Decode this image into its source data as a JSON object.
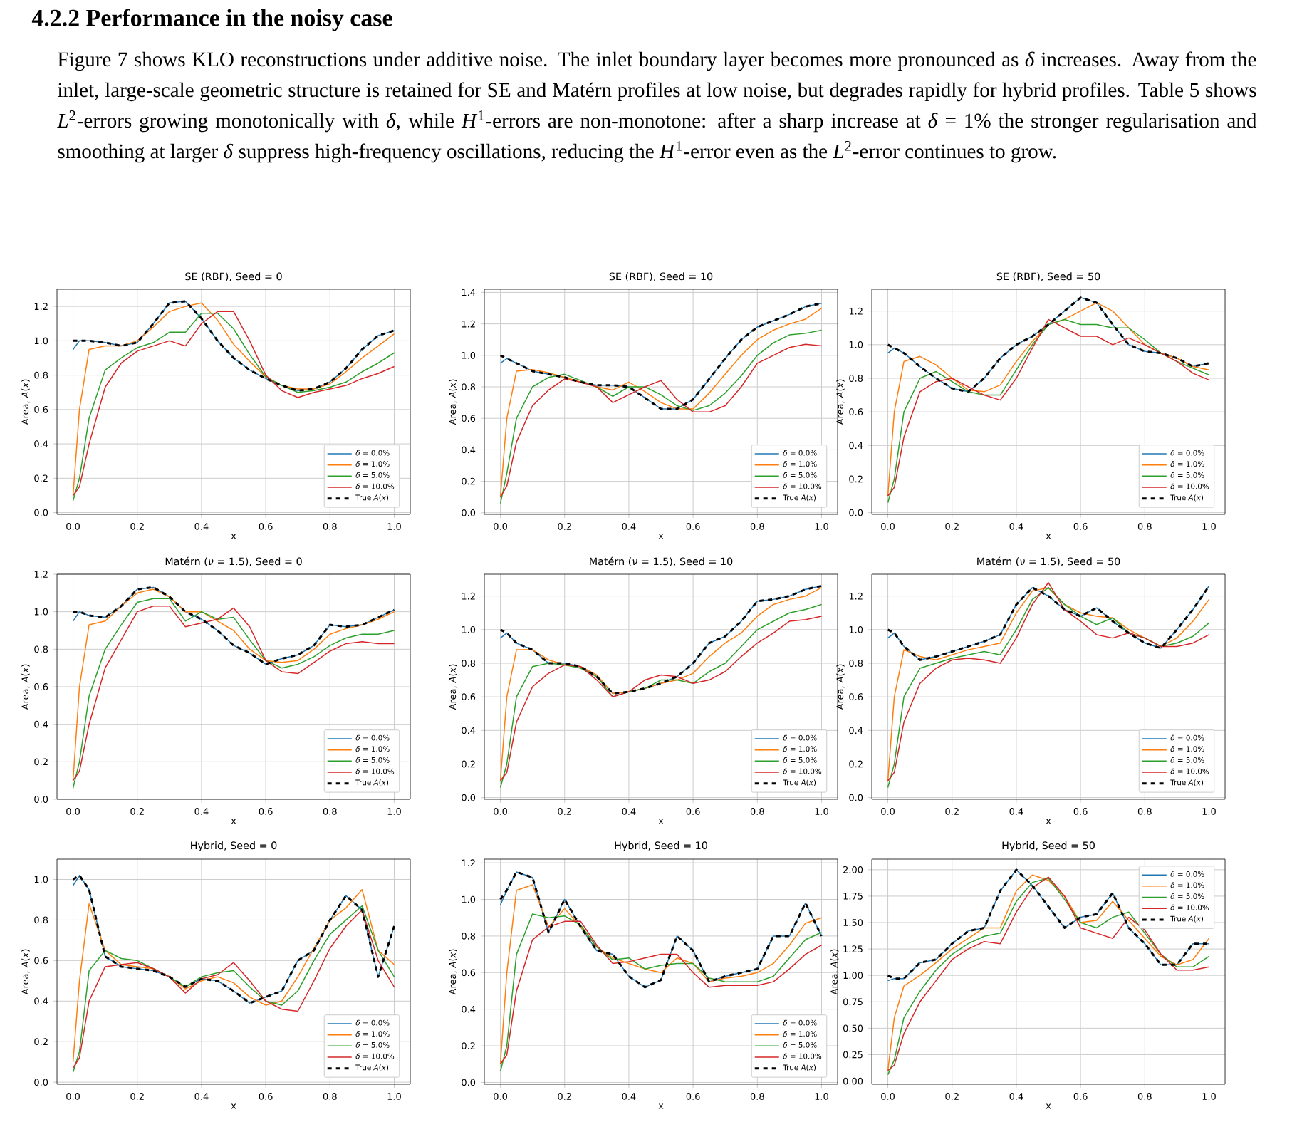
{
  "chart_data": [
    {
      "type": "line",
      "title": "SE (RBF), Seed = 0",
      "xlabel": "x",
      "ylabel": "Area, *A*(*x*)",
      "grid": true,
      "legend": "bottom right",
      "annotations": [
        "4.2.2 Performance in the noisy case",
        "Figure 7 shows KLO reconstructions under additive noise. The inlet boundary layer becomes more pronounced as *δ* increases. Away from the inlet, large-scale geometric structure is retained for SE and Matérn profiles at low noise, but degrades rapidly for hybrid profiles. Table 5 shows *L*$^{2}$-errors growing monotonically with *δ*, while *H*$^{1}$-errors are non-monotone: after a sharp increase at *δ* = 1% the stronger regularisation and smoothing at larger *δ* suppress high-frequency oscillations, reducing the *H*$^{1}$-error even as the *L*$^{2}$-error continues to grow."
      ],
      "xlim": [
        -0.05,
        1.05
      ],
      "xticks": [
        {
          "value": 0,
          "label": "0.0"
        },
        {
          "value": 0.2,
          "label": "0.2"
        },
        {
          "value": 0.4,
          "label": "0.4"
        },
        {
          "value": 0.6,
          "label": "0.6"
        },
        {
          "value": 0.8,
          "label": "0.8"
        },
        {
          "value": 1,
          "label": "1.0"
        }
      ],
      "ylim": [
        -0.01,
        1.3
      ],
      "yticks": [
        {
          "value": 0,
          "label": "0.0"
        },
        {
          "value": 0.2,
          "label": "0.2"
        },
        {
          "value": 0.4,
          "label": "0.4"
        },
        {
          "value": 0.6,
          "label": "0.6"
        },
        {
          "value": 0.8,
          "label": "0.8"
        },
        {
          "value": 1,
          "label": "1.0"
        },
        {
          "value": 1.2,
          "label": "1.2"
        }
      ],
      "x": [
        0,
        0.02,
        0.05,
        0.1,
        0.15,
        0.2,
        0.25,
        0.3,
        0.35,
        0.4,
        0.45,
        0.5,
        0.55,
        0.6,
        0.65,
        0.7,
        0.75,
        0.8,
        0.85,
        0.9,
        0.95,
        1.0
      ],
      "series": [
        {
          "name": "*δ* = 0.0%",
          "color": "#1f77b4",
          "line_style": "solid",
          "values": [
            0.95,
            1.0,
            1.0,
            0.99,
            0.97,
            0.99,
            1.1,
            1.22,
            1.23,
            1.13,
            1.0,
            0.9,
            0.83,
            0.78,
            0.74,
            0.71,
            0.72,
            0.76,
            0.84,
            0.95,
            1.03,
            1.06
          ]
        },
        {
          "name": "*δ* = 1.0%",
          "color": "#ff7f0e",
          "line_style": "solid",
          "values": [
            0.1,
            0.6,
            0.95,
            0.97,
            0.97,
            1.0,
            1.08,
            1.17,
            1.2,
            1.22,
            1.12,
            0.98,
            0.88,
            0.79,
            0.74,
            0.72,
            0.72,
            0.75,
            0.82,
            0.9,
            0.97,
            1.04
          ]
        },
        {
          "name": "*δ* = 5.0%",
          "color": "#2ca02c",
          "line_style": "solid",
          "values": [
            0.07,
            0.2,
            0.55,
            0.83,
            0.9,
            0.96,
            0.99,
            1.05,
            1.05,
            1.16,
            1.16,
            1.07,
            0.92,
            0.79,
            0.74,
            0.7,
            0.71,
            0.73,
            0.76,
            0.82,
            0.87,
            0.93
          ]
        },
        {
          "name": "*δ* = 10.0%",
          "color": "#d62728",
          "line_style": "solid",
          "values": [
            0.1,
            0.15,
            0.4,
            0.73,
            0.87,
            0.94,
            0.97,
            1.0,
            0.97,
            1.1,
            1.17,
            1.17,
            1.0,
            0.8,
            0.71,
            0.67,
            0.7,
            0.72,
            0.74,
            0.78,
            0.81,
            0.85
          ]
        },
        {
          "name": "True *A*(*x*)",
          "color": "#000000",
          "line_style": "dashed",
          "values": [
            1.0,
            1.0,
            1.0,
            0.99,
            0.97,
            0.99,
            1.1,
            1.22,
            1.23,
            1.13,
            1.0,
            0.9,
            0.83,
            0.78,
            0.74,
            0.71,
            0.72,
            0.76,
            0.84,
            0.95,
            1.03,
            1.06
          ]
        }
      ]
    },
    {
      "type": "line",
      "title": "SE (RBF), Seed = 10",
      "xlabel": "x",
      "ylabel": "Area, *A*(*x*)",
      "grid": true,
      "legend": "bottom right",
      "xlim": [
        -0.05,
        1.05
      ],
      "xticks": [
        {
          "value": 0,
          "label": "0.0"
        },
        {
          "value": 0.2,
          "label": "0.2"
        },
        {
          "value": 0.4,
          "label": "0.4"
        },
        {
          "value": 0.6,
          "label": "0.6"
        },
        {
          "value": 0.8,
          "label": "0.8"
        },
        {
          "value": 1,
          "label": "1.0"
        }
      ],
      "ylim": [
        -0.01,
        1.42
      ],
      "yticks": [
        {
          "value": 0,
          "label": "0.0"
        },
        {
          "value": 0.2,
          "label": "0.2"
        },
        {
          "value": 0.4,
          "label": "0.4"
        },
        {
          "value": 0.6,
          "label": "0.6"
        },
        {
          "value": 0.8,
          "label": "0.8"
        },
        {
          "value": 1,
          "label": "1.0"
        },
        {
          "value": 1.2,
          "label": "1.2"
        },
        {
          "value": 1.4,
          "label": "1.4"
        }
      ],
      "x": [
        0,
        0.02,
        0.05,
        0.1,
        0.15,
        0.2,
        0.25,
        0.3,
        0.35,
        0.4,
        0.45,
        0.5,
        0.55,
        0.6,
        0.65,
        0.7,
        0.75,
        0.8,
        0.85,
        0.9,
        0.95,
        1.0
      ],
      "series": [
        {
          "name": "*δ* = 0.0%",
          "color": "#1f77b4",
          "line_style": "solid",
          "values": [
            0.95,
            0.98,
            0.95,
            0.9,
            0.88,
            0.86,
            0.83,
            0.81,
            0.81,
            0.8,
            0.73,
            0.66,
            0.66,
            0.72,
            0.85,
            0.98,
            1.1,
            1.18,
            1.22,
            1.26,
            1.31,
            1.33
          ]
        },
        {
          "name": "*δ* = 1.0%",
          "color": "#ff7f0e",
          "line_style": "solid",
          "values": [
            0.1,
            0.6,
            0.9,
            0.91,
            0.89,
            0.86,
            0.83,
            0.8,
            0.78,
            0.83,
            0.77,
            0.7,
            0.66,
            0.66,
            0.76,
            0.88,
            1.0,
            1.1,
            1.16,
            1.2,
            1.23,
            1.3
          ]
        },
        {
          "name": "*δ* = 5.0%",
          "color": "#2ca02c",
          "line_style": "solid",
          "values": [
            0.06,
            0.25,
            0.6,
            0.8,
            0.86,
            0.88,
            0.84,
            0.8,
            0.74,
            0.8,
            0.8,
            0.75,
            0.68,
            0.65,
            0.68,
            0.76,
            0.87,
            1.0,
            1.08,
            1.13,
            1.14,
            1.16
          ]
        },
        {
          "name": "*δ* = 10.0%",
          "color": "#d62728",
          "line_style": "solid",
          "values": [
            0.1,
            0.17,
            0.45,
            0.68,
            0.78,
            0.85,
            0.83,
            0.8,
            0.7,
            0.75,
            0.8,
            0.84,
            0.72,
            0.64,
            0.64,
            0.68,
            0.8,
            0.95,
            1.0,
            1.05,
            1.07,
            1.06
          ]
        },
        {
          "name": "True *A*(*x*)",
          "color": "#000000",
          "line_style": "dashed",
          "values": [
            1.0,
            0.98,
            0.95,
            0.9,
            0.88,
            0.86,
            0.83,
            0.81,
            0.81,
            0.8,
            0.73,
            0.66,
            0.66,
            0.72,
            0.85,
            0.98,
            1.1,
            1.18,
            1.22,
            1.26,
            1.31,
            1.33
          ]
        }
      ]
    },
    {
      "type": "line",
      "title": "SE (RBF), Seed = 50",
      "xlabel": "x",
      "ylabel": "Area, *A*(*x*)",
      "grid": true,
      "legend": "bottom right",
      "xlim": [
        -0.05,
        1.05
      ],
      "xticks": [
        {
          "value": 0,
          "label": "0.0"
        },
        {
          "value": 0.2,
          "label": "0.2"
        },
        {
          "value": 0.4,
          "label": "0.4"
        },
        {
          "value": 0.6,
          "label": "0.6"
        },
        {
          "value": 0.8,
          "label": "0.8"
        },
        {
          "value": 1,
          "label": "1.0"
        }
      ],
      "ylim": [
        -0.01,
        1.33
      ],
      "yticks": [
        {
          "value": 0,
          "label": "0.0"
        },
        {
          "value": 0.2,
          "label": "0.2"
        },
        {
          "value": 0.4,
          "label": "0.4"
        },
        {
          "value": 0.6,
          "label": "0.6"
        },
        {
          "value": 0.8,
          "label": "0.8"
        },
        {
          "value": 1,
          "label": "1.0"
        },
        {
          "value": 1.2,
          "label": "1.2"
        }
      ],
      "x": [
        0,
        0.02,
        0.05,
        0.1,
        0.15,
        0.2,
        0.25,
        0.3,
        0.35,
        0.4,
        0.45,
        0.5,
        0.55,
        0.6,
        0.65,
        0.7,
        0.75,
        0.8,
        0.85,
        0.9,
        0.95,
        1.0
      ],
      "series": [
        {
          "name": "*δ* = 0.0%",
          "color": "#1f77b4",
          "line_style": "solid",
          "values": [
            0.95,
            0.98,
            0.95,
            0.87,
            0.8,
            0.74,
            0.72,
            0.8,
            0.92,
            1.0,
            1.05,
            1.12,
            1.2,
            1.28,
            1.25,
            1.12,
            1.0,
            0.96,
            0.95,
            0.92,
            0.87,
            0.89
          ]
        },
        {
          "name": "*δ* = 1.0%",
          "color": "#ff7f0e",
          "line_style": "solid",
          "values": [
            0.1,
            0.6,
            0.9,
            0.93,
            0.88,
            0.8,
            0.73,
            0.72,
            0.76,
            0.9,
            1.02,
            1.12,
            1.15,
            1.2,
            1.25,
            1.2,
            1.1,
            1.0,
            0.95,
            0.92,
            0.87,
            0.85
          ]
        },
        {
          "name": "*δ* = 5.0%",
          "color": "#2ca02c",
          "line_style": "solid",
          "values": [
            0.06,
            0.2,
            0.6,
            0.8,
            0.84,
            0.78,
            0.72,
            0.7,
            0.7,
            0.85,
            1.0,
            1.12,
            1.15,
            1.12,
            1.12,
            1.1,
            1.1,
            1.03,
            0.95,
            0.9,
            0.86,
            0.82
          ]
        },
        {
          "name": "*δ* = 10.0%",
          "color": "#d62728",
          "line_style": "solid",
          "values": [
            0.1,
            0.15,
            0.45,
            0.72,
            0.78,
            0.8,
            0.75,
            0.7,
            0.67,
            0.8,
            0.98,
            1.15,
            1.1,
            1.05,
            1.05,
            1.0,
            1.04,
            1.0,
            0.95,
            0.9,
            0.83,
            0.79
          ]
        },
        {
          "name": "True *A*(*x*)",
          "color": "#000000",
          "line_style": "dashed",
          "values": [
            1.0,
            0.98,
            0.95,
            0.87,
            0.8,
            0.74,
            0.72,
            0.8,
            0.92,
            1.0,
            1.05,
            1.12,
            1.2,
            1.28,
            1.25,
            1.12,
            1.0,
            0.96,
            0.95,
            0.92,
            0.87,
            0.89
          ]
        }
      ]
    },
    {
      "type": "line",
      "title": "Matérn (*ν* = 1.5), Seed = 0",
      "xlabel": "x",
      "ylabel": "Area, *A*(*x*)",
      "grid": true,
      "legend": "bottom right",
      "xlim": [
        -0.05,
        1.05
      ],
      "xticks": [
        {
          "value": 0,
          "label": "0.0"
        },
        {
          "value": 0.2,
          "label": "0.2"
        },
        {
          "value": 0.4,
          "label": "0.4"
        },
        {
          "value": 0.6,
          "label": "0.6"
        },
        {
          "value": 0.8,
          "label": "0.8"
        },
        {
          "value": 1,
          "label": "1.0"
        }
      ],
      "ylim": [
        0,
        1.2
      ],
      "yticks": [
        {
          "value": 0,
          "label": "0.0"
        },
        {
          "value": 0.2,
          "label": "0.2"
        },
        {
          "value": 0.4,
          "label": "0.4"
        },
        {
          "value": 0.6,
          "label": "0.6"
        },
        {
          "value": 0.8,
          "label": "0.8"
        },
        {
          "value": 1,
          "label": "1.0"
        },
        {
          "value": 1.2,
          "label": "1.2"
        }
      ],
      "x": [
        0,
        0.02,
        0.05,
        0.1,
        0.15,
        0.2,
        0.25,
        0.3,
        0.35,
        0.4,
        0.45,
        0.5,
        0.55,
        0.6,
        0.65,
        0.7,
        0.75,
        0.8,
        0.85,
        0.9,
        0.95,
        1.0
      ],
      "series": [
        {
          "name": "*δ* = 0.0%",
          "color": "#1f77b4",
          "line_style": "solid",
          "values": [
            0.95,
            1.0,
            0.98,
            0.97,
            1.03,
            1.12,
            1.13,
            1.08,
            1.0,
            0.96,
            0.9,
            0.82,
            0.78,
            0.72,
            0.75,
            0.77,
            0.82,
            0.93,
            0.92,
            0.93,
            0.97,
            1.01
          ]
        },
        {
          "name": "*δ* = 1.0%",
          "color": "#ff7f0e",
          "line_style": "solid",
          "values": [
            0.1,
            0.6,
            0.93,
            0.95,
            1.03,
            1.1,
            1.12,
            1.08,
            1.0,
            1.0,
            0.95,
            0.9,
            0.8,
            0.74,
            0.73,
            0.74,
            0.8,
            0.88,
            0.91,
            0.93,
            0.96,
            1.0
          ]
        },
        {
          "name": "*δ* = 5.0%",
          "color": "#2ca02c",
          "line_style": "solid",
          "values": [
            0.06,
            0.2,
            0.55,
            0.8,
            0.93,
            1.05,
            1.07,
            1.07,
            0.95,
            1.0,
            0.96,
            0.97,
            0.85,
            0.74,
            0.7,
            0.72,
            0.76,
            0.82,
            0.86,
            0.88,
            0.88,
            0.9
          ]
        },
        {
          "name": "*δ* = 10.0%",
          "color": "#d62728",
          "line_style": "solid",
          "values": [
            0.1,
            0.15,
            0.4,
            0.7,
            0.85,
            1.0,
            1.03,
            1.03,
            0.92,
            0.94,
            0.96,
            1.02,
            0.92,
            0.74,
            0.68,
            0.67,
            0.73,
            0.79,
            0.83,
            0.84,
            0.83,
            0.83
          ]
        },
        {
          "name": "True *A*(*x*)",
          "color": "#000000",
          "line_style": "dashed",
          "values": [
            1.0,
            1.0,
            0.98,
            0.97,
            1.03,
            1.12,
            1.13,
            1.08,
            1.0,
            0.96,
            0.9,
            0.82,
            0.78,
            0.72,
            0.75,
            0.77,
            0.82,
            0.93,
            0.92,
            0.93,
            0.97,
            1.01
          ]
        }
      ]
    },
    {
      "type": "line",
      "title": "Matérn (*ν* = 1.5), Seed = 10",
      "xlabel": "x",
      "ylabel": "Area, *A*(*x*)",
      "grid": true,
      "legend": "bottom right",
      "xlim": [
        -0.05,
        1.05
      ],
      "xticks": [
        {
          "value": 0,
          "label": "0.0"
        },
        {
          "value": 0.2,
          "label": "0.2"
        },
        {
          "value": 0.4,
          "label": "0.4"
        },
        {
          "value": 0.6,
          "label": "0.6"
        },
        {
          "value": 0.8,
          "label": "0.8"
        },
        {
          "value": 1,
          "label": "1.0"
        }
      ],
      "ylim": [
        -0.01,
        1.33
      ],
      "yticks": [
        {
          "value": 0,
          "label": "0.0"
        },
        {
          "value": 0.2,
          "label": "0.2"
        },
        {
          "value": 0.4,
          "label": "0.4"
        },
        {
          "value": 0.6,
          "label": "0.6"
        },
        {
          "value": 0.8,
          "label": "0.8"
        },
        {
          "value": 1,
          "label": "1.0"
        },
        {
          "value": 1.2,
          "label": "1.2"
        }
      ],
      "x": [
        0,
        0.02,
        0.05,
        0.1,
        0.15,
        0.2,
        0.25,
        0.3,
        0.35,
        0.4,
        0.45,
        0.5,
        0.55,
        0.6,
        0.65,
        0.7,
        0.75,
        0.8,
        0.85,
        0.9,
        0.95,
        1.0
      ],
      "series": [
        {
          "name": "*δ* = 0.0%",
          "color": "#1f77b4",
          "line_style": "solid",
          "values": [
            0.95,
            0.98,
            0.92,
            0.88,
            0.8,
            0.8,
            0.78,
            0.72,
            0.62,
            0.63,
            0.65,
            0.68,
            0.72,
            0.8,
            0.92,
            0.96,
            1.05,
            1.17,
            1.18,
            1.2,
            1.24,
            1.26
          ]
        },
        {
          "name": "*δ* = 1.0%",
          "color": "#ff7f0e",
          "line_style": "solid",
          "values": [
            0.1,
            0.6,
            0.88,
            0.88,
            0.82,
            0.79,
            0.78,
            0.73,
            0.62,
            0.63,
            0.65,
            0.68,
            0.7,
            0.74,
            0.84,
            0.92,
            0.98,
            1.08,
            1.15,
            1.18,
            1.2,
            1.25
          ]
        },
        {
          "name": "*δ* = 5.0%",
          "color": "#2ca02c",
          "line_style": "solid",
          "values": [
            0.06,
            0.2,
            0.6,
            0.78,
            0.8,
            0.79,
            0.77,
            0.72,
            0.6,
            0.63,
            0.65,
            0.7,
            0.7,
            0.68,
            0.75,
            0.8,
            0.9,
            1.0,
            1.05,
            1.1,
            1.12,
            1.15
          ]
        },
        {
          "name": "*δ* = 10.0%",
          "color": "#d62728",
          "line_style": "solid",
          "values": [
            0.1,
            0.15,
            0.45,
            0.66,
            0.74,
            0.79,
            0.78,
            0.7,
            0.6,
            0.63,
            0.7,
            0.73,
            0.72,
            0.68,
            0.7,
            0.75,
            0.84,
            0.92,
            0.98,
            1.05,
            1.06,
            1.08
          ]
        },
        {
          "name": "True *A*(*x*)",
          "color": "#000000",
          "line_style": "dashed",
          "values": [
            1.0,
            0.98,
            0.92,
            0.88,
            0.8,
            0.8,
            0.78,
            0.72,
            0.62,
            0.63,
            0.65,
            0.68,
            0.72,
            0.8,
            0.92,
            0.96,
            1.05,
            1.17,
            1.18,
            1.2,
            1.24,
            1.26
          ]
        }
      ]
    },
    {
      "type": "line",
      "title": "Matérn (*ν* = 1.5), Seed = 50",
      "xlabel": "x",
      "ylabel": "Area, *A*(*x*)",
      "grid": true,
      "legend": "bottom right",
      "xlim": [
        -0.05,
        1.05
      ],
      "xticks": [
        {
          "value": 0,
          "label": "0.0"
        },
        {
          "value": 0.2,
          "label": "0.2"
        },
        {
          "value": 0.4,
          "label": "0.4"
        },
        {
          "value": 0.6,
          "label": "0.6"
        },
        {
          "value": 0.8,
          "label": "0.8"
        },
        {
          "value": 1,
          "label": "1.0"
        }
      ],
      "ylim": [
        -0.01,
        1.33
      ],
      "yticks": [
        {
          "value": 0,
          "label": "0.0"
        },
        {
          "value": 0.2,
          "label": "0.2"
        },
        {
          "value": 0.4,
          "label": "0.4"
        },
        {
          "value": 0.6,
          "label": "0.6"
        },
        {
          "value": 0.8,
          "label": "0.8"
        },
        {
          "value": 1,
          "label": "1.0"
        },
        {
          "value": 1.2,
          "label": "1.2"
        }
      ],
      "x": [
        0,
        0.02,
        0.05,
        0.1,
        0.15,
        0.2,
        0.25,
        0.3,
        0.35,
        0.4,
        0.45,
        0.5,
        0.55,
        0.6,
        0.65,
        0.7,
        0.75,
        0.8,
        0.85,
        0.9,
        0.95,
        1.0
      ],
      "series": [
        {
          "name": "*δ* = 0.0%",
          "color": "#1f77b4",
          "line_style": "solid",
          "values": [
            0.95,
            0.98,
            0.9,
            0.82,
            0.84,
            0.87,
            0.9,
            0.93,
            0.97,
            1.15,
            1.25,
            1.2,
            1.12,
            1.08,
            1.13,
            1.05,
            0.98,
            0.92,
            0.89,
            1.0,
            1.12,
            1.26
          ]
        },
        {
          "name": "*δ* = 1.0%",
          "color": "#ff7f0e",
          "line_style": "solid",
          "values": [
            0.1,
            0.6,
            0.88,
            0.84,
            0.82,
            0.85,
            0.88,
            0.9,
            0.92,
            1.1,
            1.23,
            1.25,
            1.15,
            1.1,
            1.08,
            1.07,
            1.0,
            0.95,
            0.9,
            0.95,
            1.05,
            1.18
          ]
        },
        {
          "name": "*δ* = 5.0%",
          "color": "#2ca02c",
          "line_style": "solid",
          "values": [
            0.06,
            0.2,
            0.6,
            0.77,
            0.8,
            0.83,
            0.85,
            0.87,
            0.85,
            1.0,
            1.18,
            1.25,
            1.15,
            1.08,
            1.03,
            1.07,
            0.98,
            0.95,
            0.9,
            0.92,
            0.96,
            1.04
          ]
        },
        {
          "name": "*δ* = 10.0%",
          "color": "#d62728",
          "line_style": "solid",
          "values": [
            0.1,
            0.15,
            0.45,
            0.68,
            0.77,
            0.82,
            0.83,
            0.82,
            0.8,
            0.95,
            1.15,
            1.28,
            1.12,
            1.05,
            0.97,
            0.95,
            0.98,
            0.95,
            0.9,
            0.9,
            0.92,
            0.97
          ]
        },
        {
          "name": "True *A*(*x*)",
          "color": "#000000",
          "line_style": "dashed",
          "values": [
            1.0,
            0.98,
            0.9,
            0.82,
            0.84,
            0.87,
            0.9,
            0.93,
            0.97,
            1.15,
            1.25,
            1.2,
            1.12,
            1.08,
            1.13,
            1.05,
            0.98,
            0.92,
            0.89,
            1.0,
            1.12,
            1.26
          ]
        }
      ]
    },
    {
      "type": "line",
      "title": "Hybrid, Seed = 0",
      "xlabel": "x",
      "ylabel": "Area, *A*(*x*)",
      "grid": true,
      "legend": "bottom right",
      "xlim": [
        -0.05,
        1.05
      ],
      "xticks": [
        {
          "value": 0,
          "label": "0.0"
        },
        {
          "value": 0.2,
          "label": "0.2"
        },
        {
          "value": 0.4,
          "label": "0.4"
        },
        {
          "value": 0.6,
          "label": "0.6"
        },
        {
          "value": 0.8,
          "label": "0.8"
        },
        {
          "value": 1,
          "label": "1.0"
        }
      ],
      "ylim": [
        -0.01,
        1.1
      ],
      "yticks": [
        {
          "value": 0,
          "label": "0.0"
        },
        {
          "value": 0.2,
          "label": "0.2"
        },
        {
          "value": 0.4,
          "label": "0.4"
        },
        {
          "value": 0.6,
          "label": "0.6"
        },
        {
          "value": 0.8,
          "label": "0.8"
        },
        {
          "value": 1,
          "label": "1.0"
        }
      ],
      "x": [
        0,
        0.02,
        0.05,
        0.1,
        0.15,
        0.2,
        0.25,
        0.3,
        0.35,
        0.4,
        0.45,
        0.5,
        0.55,
        0.6,
        0.65,
        0.7,
        0.75,
        0.8,
        0.85,
        0.9,
        0.95,
        1.0
      ],
      "series": [
        {
          "name": "*δ* = 0.0%",
          "color": "#1f77b4",
          "line_style": "solid",
          "values": [
            0.97,
            1.02,
            0.95,
            0.62,
            0.57,
            0.56,
            0.55,
            0.52,
            0.47,
            0.51,
            0.5,
            0.45,
            0.39,
            0.42,
            0.45,
            0.6,
            0.65,
            0.8,
            0.92,
            0.85,
            0.52,
            0.77
          ]
        },
        {
          "name": "*δ* = 1.0%",
          "color": "#ff7f0e",
          "line_style": "solid",
          "values": [
            0.1,
            0.5,
            0.88,
            0.65,
            0.58,
            0.57,
            0.56,
            0.52,
            0.46,
            0.5,
            0.52,
            0.49,
            0.42,
            0.38,
            0.4,
            0.52,
            0.66,
            0.8,
            0.86,
            0.95,
            0.65,
            0.58
          ]
        },
        {
          "name": "*δ* = 5.0%",
          "color": "#2ca02c",
          "line_style": "solid",
          "values": [
            0.05,
            0.15,
            0.55,
            0.65,
            0.61,
            0.6,
            0.56,
            0.52,
            0.47,
            0.52,
            0.54,
            0.55,
            0.47,
            0.4,
            0.38,
            0.45,
            0.6,
            0.73,
            0.8,
            0.87,
            0.65,
            0.52
          ]
        },
        {
          "name": "*δ* = 10.0%",
          "color": "#d62728",
          "line_style": "solid",
          "values": [
            0.07,
            0.12,
            0.4,
            0.57,
            0.58,
            0.59,
            0.56,
            0.52,
            0.44,
            0.51,
            0.53,
            0.59,
            0.5,
            0.4,
            0.36,
            0.35,
            0.5,
            0.66,
            0.77,
            0.85,
            0.6,
            0.47
          ]
        },
        {
          "name": "True *A*(*x*)",
          "color": "#000000",
          "line_style": "dashed",
          "values": [
            1.0,
            1.02,
            0.95,
            0.62,
            0.57,
            0.56,
            0.55,
            0.52,
            0.47,
            0.51,
            0.5,
            0.45,
            0.39,
            0.42,
            0.45,
            0.6,
            0.65,
            0.8,
            0.92,
            0.85,
            0.52,
            0.77
          ]
        }
      ]
    },
    {
      "type": "line",
      "title": "Hybrid, Seed = 10",
      "xlabel": "x",
      "ylabel": "Area, *A*(*x*)",
      "grid": true,
      "legend": "bottom right",
      "xlim": [
        -0.05,
        1.05
      ],
      "xticks": [
        {
          "value": 0,
          "label": "0.0"
        },
        {
          "value": 0.2,
          "label": "0.2"
        },
        {
          "value": 0.4,
          "label": "0.4"
        },
        {
          "value": 0.6,
          "label": "0.6"
        },
        {
          "value": 0.8,
          "label": "0.8"
        },
        {
          "value": 1,
          "label": "1.0"
        }
      ],
      "ylim": [
        -0.01,
        1.22
      ],
      "yticks": [
        {
          "value": 0,
          "label": "0.0"
        },
        {
          "value": 0.2,
          "label": "0.2"
        },
        {
          "value": 0.4,
          "label": "0.4"
        },
        {
          "value": 0.6,
          "label": "0.6"
        },
        {
          "value": 0.8,
          "label": "0.8"
        },
        {
          "value": 1,
          "label": "1.0"
        },
        {
          "value": 1.2,
          "label": "1.2"
        }
      ],
      "x": [
        0,
        0.02,
        0.05,
        0.1,
        0.15,
        0.2,
        0.25,
        0.3,
        0.35,
        0.4,
        0.45,
        0.5,
        0.55,
        0.6,
        0.65,
        0.7,
        0.75,
        0.8,
        0.85,
        0.9,
        0.95,
        1.0
      ],
      "series": [
        {
          "name": "*δ* = 0.0%",
          "color": "#1f77b4",
          "line_style": "solid",
          "values": [
            0.97,
            1.05,
            1.15,
            1.12,
            0.82,
            1.0,
            0.85,
            0.72,
            0.7,
            0.58,
            0.52,
            0.56,
            0.8,
            0.72,
            0.55,
            0.58,
            0.6,
            0.62,
            0.8,
            0.8,
            0.98,
            0.8
          ]
        },
        {
          "name": "*δ* = 1.0%",
          "color": "#ff7f0e",
          "line_style": "solid",
          "values": [
            0.1,
            0.6,
            1.05,
            1.08,
            0.85,
            0.95,
            0.85,
            0.74,
            0.68,
            0.65,
            0.62,
            0.6,
            0.68,
            0.65,
            0.55,
            0.57,
            0.58,
            0.6,
            0.65,
            0.75,
            0.87,
            0.9
          ]
        },
        {
          "name": "*δ* = 5.0%",
          "color": "#2ca02c",
          "line_style": "solid",
          "values": [
            0.06,
            0.2,
            0.7,
            0.92,
            0.9,
            0.91,
            0.86,
            0.74,
            0.67,
            0.68,
            0.62,
            0.64,
            0.65,
            0.65,
            0.57,
            0.55,
            0.55,
            0.55,
            0.58,
            0.68,
            0.78,
            0.82
          ]
        },
        {
          "name": "*δ* = 10.0%",
          "color": "#d62728",
          "line_style": "solid",
          "values": [
            0.1,
            0.15,
            0.5,
            0.78,
            0.85,
            0.88,
            0.88,
            0.75,
            0.65,
            0.66,
            0.68,
            0.7,
            0.7,
            0.6,
            0.52,
            0.53,
            0.53,
            0.53,
            0.55,
            0.62,
            0.7,
            0.75
          ]
        },
        {
          "name": "True *A*(*x*)",
          "color": "#000000",
          "line_style": "dashed",
          "values": [
            1.0,
            1.05,
            1.15,
            1.12,
            0.82,
            1.0,
            0.85,
            0.72,
            0.7,
            0.58,
            0.52,
            0.56,
            0.8,
            0.72,
            0.55,
            0.58,
            0.6,
            0.62,
            0.8,
            0.8,
            0.98,
            0.8
          ]
        }
      ]
    },
    {
      "type": "line",
      "title": "Hybrid, Seed = 50",
      "xlabel": "x",
      "ylabel": "Area, *A*(*x*)",
      "grid": true,
      "legend": "top right",
      "xlim": [
        -0.05,
        1.05
      ],
      "xticks": [
        {
          "value": 0,
          "label": "0.0"
        },
        {
          "value": 0.2,
          "label": "0.2"
        },
        {
          "value": 0.4,
          "label": "0.4"
        },
        {
          "value": 0.6,
          "label": "0.6"
        },
        {
          "value": 0.8,
          "label": "0.8"
        },
        {
          "value": 1,
          "label": "1.0"
        }
      ],
      "ylim": [
        -0.03,
        2.1
      ],
      "yticks": [
        {
          "value": 0,
          "label": "0.00"
        },
        {
          "value": 0.25,
          "label": "0.25"
        },
        {
          "value": 0.5,
          "label": "0.50"
        },
        {
          "value": 0.75,
          "label": "0.75"
        },
        {
          "value": 1,
          "label": "1.00"
        },
        {
          "value": 1.25,
          "label": "1.25"
        },
        {
          "value": 1.5,
          "label": "1.50"
        },
        {
          "value": 1.75,
          "label": "1.75"
        },
        {
          "value": 2,
          "label": "2.00"
        }
      ],
      "x": [
        0,
        0.02,
        0.05,
        0.1,
        0.15,
        0.2,
        0.25,
        0.3,
        0.35,
        0.4,
        0.45,
        0.5,
        0.55,
        0.6,
        0.65,
        0.7,
        0.75,
        0.8,
        0.85,
        0.9,
        0.95,
        1.0
      ],
      "series": [
        {
          "name": "*δ* = 0.0%",
          "color": "#1f77b4",
          "line_style": "solid",
          "values": [
            0.95,
            0.97,
            0.97,
            1.12,
            1.15,
            1.3,
            1.42,
            1.45,
            1.8,
            2.0,
            1.85,
            1.65,
            1.45,
            1.55,
            1.58,
            1.78,
            1.45,
            1.3,
            1.1,
            1.1,
            1.3,
            1.3
          ]
        },
        {
          "name": "*δ* = 1.0%",
          "color": "#ff7f0e",
          "line_style": "solid",
          "values": [
            0.1,
            0.6,
            0.9,
            1.0,
            1.12,
            1.25,
            1.35,
            1.45,
            1.45,
            1.8,
            1.95,
            1.9,
            1.75,
            1.5,
            1.52,
            1.7,
            1.52,
            1.35,
            1.18,
            1.1,
            1.15,
            1.35
          ]
        },
        {
          "name": "*δ* = 5.0%",
          "color": "#2ca02c",
          "line_style": "solid",
          "values": [
            0.06,
            0.2,
            0.6,
            0.85,
            1.05,
            1.2,
            1.3,
            1.37,
            1.4,
            1.7,
            1.88,
            1.92,
            1.72,
            1.5,
            1.45,
            1.55,
            1.6,
            1.4,
            1.2,
            1.08,
            1.08,
            1.18
          ]
        },
        {
          "name": "*δ* = 10.0%",
          "color": "#d62728",
          "line_style": "solid",
          "values": [
            0.1,
            0.15,
            0.45,
            0.75,
            0.95,
            1.15,
            1.25,
            1.32,
            1.3,
            1.6,
            1.83,
            1.93,
            1.75,
            1.45,
            1.4,
            1.35,
            1.55,
            1.43,
            1.2,
            1.05,
            1.05,
            1.08
          ]
        },
        {
          "name": "True *A*(*x*)",
          "color": "#000000",
          "line_style": "dashed",
          "values": [
            1.0,
            0.97,
            0.97,
            1.12,
            1.15,
            1.3,
            1.42,
            1.45,
            1.8,
            2.0,
            1.85,
            1.65,
            1.45,
            1.55,
            1.58,
            1.78,
            1.45,
            1.3,
            1.1,
            1.1,
            1.3,
            1.3
          ]
        }
      ]
    }
  ]
}
